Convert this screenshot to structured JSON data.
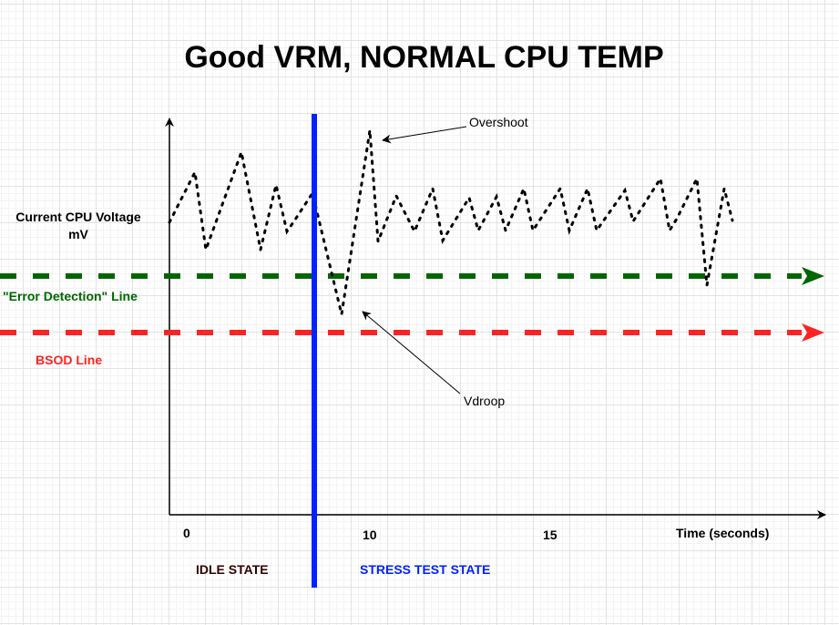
{
  "title": "Good VRM, NORMAL CPU TEMP",
  "y_axis_label_line1": "Current CPU Voltage",
  "y_axis_label_line2": "mV",
  "x_axis_label": "Time (seconds)",
  "x_ticks": [
    "0",
    "10",
    "15"
  ],
  "states": {
    "idle": "IDLE STATE",
    "stress": "STRESS TEST STATE"
  },
  "lines": {
    "error_detection": {
      "label": "\"Error Detection\" Line",
      "color": "#006600"
    },
    "bsod": {
      "label": "BSOD Line",
      "color": "#ff2222"
    }
  },
  "annotations": {
    "overshoot": "Overshoot",
    "vdroop": "Vdroop"
  },
  "colors": {
    "state_divider": "#0022ff",
    "idle_text": "#330000",
    "waveform": "#000000"
  }
}
